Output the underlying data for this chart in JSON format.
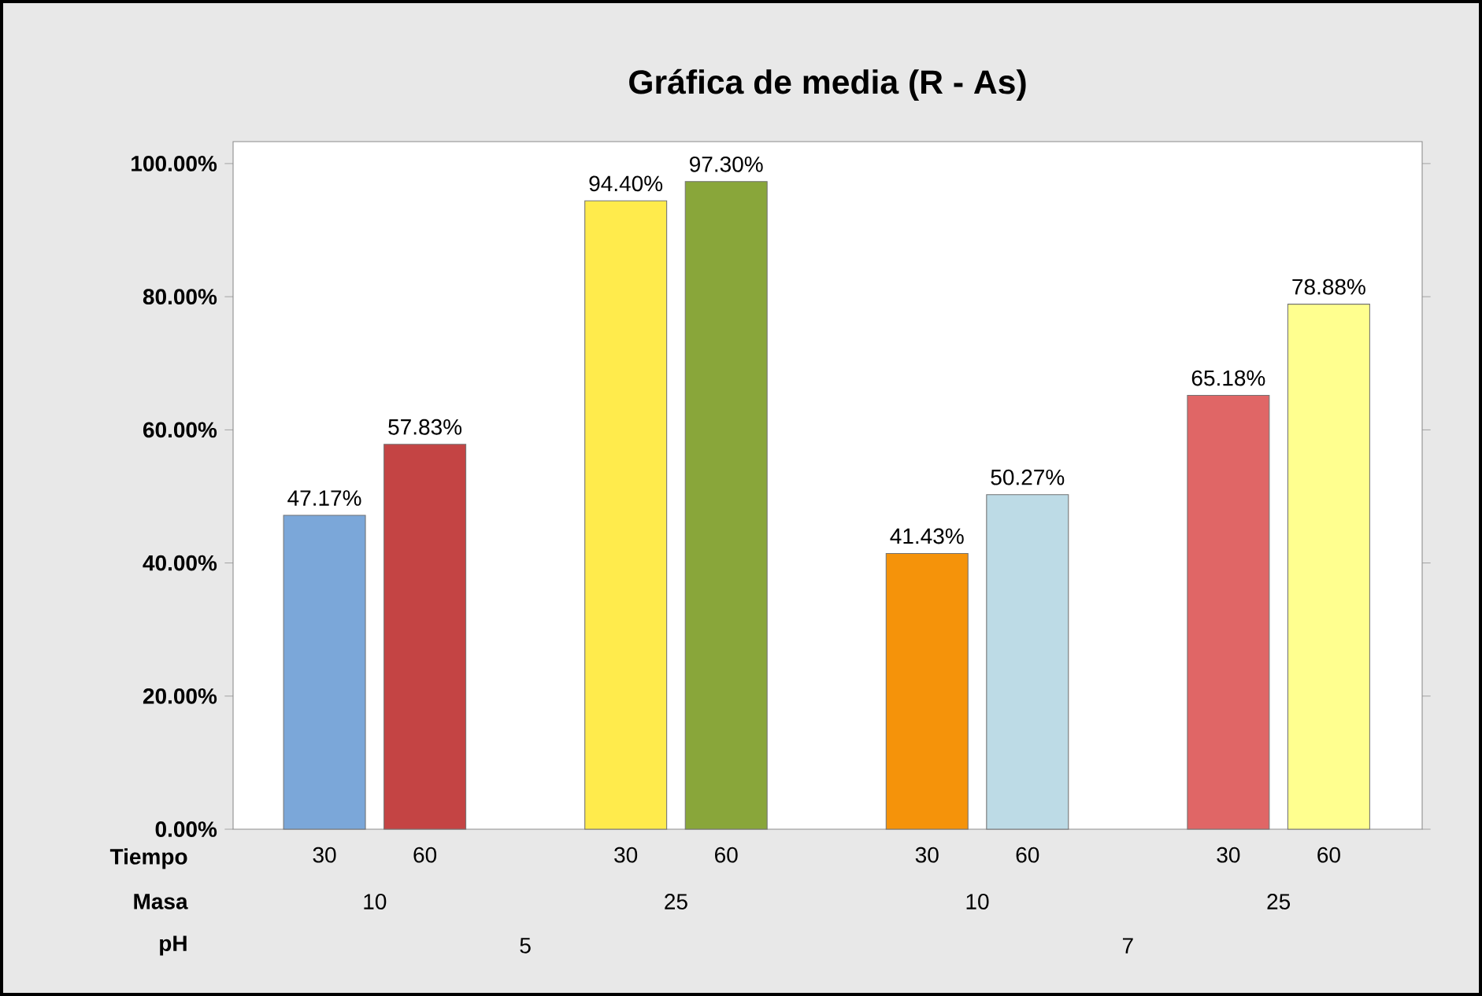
{
  "chart_data": {
    "type": "bar",
    "title": "Gráfica de media (R - As)",
    "xlabel": "Tiempo",
    "categories": [
      "30",
      "60",
      null,
      "30",
      "60",
      null,
      "30",
      "60",
      null,
      "30",
      "60"
    ],
    "values": [
      47.17,
      57.83,
      null,
      94.4,
      97.3,
      null,
      41.43,
      50.27,
      null,
      65.18,
      78.88
    ],
    "colors": [
      "#7ba7d9",
      "#c44444",
      null,
      "#ffeb4c",
      "#89a63a",
      null,
      "#f5930a",
      "#bddbe6",
      null,
      "#e06666",
      "#ffff8f"
    ],
    "value_labels": [
      "47.17%",
      "57.83%",
      null,
      "94.40%",
      "97.30%",
      null,
      "41.43%",
      "50.27%",
      null,
      "65.18%",
      "78.88%"
    ],
    "ylim": [
      0,
      103.3
    ],
    "yticks": [
      {
        "value": 0,
        "label": "0.00%"
      },
      {
        "value": 20,
        "label": "20.00%"
      },
      {
        "value": 40,
        "label": "40.00%"
      },
      {
        "value": 60,
        "label": "60.00%"
      },
      {
        "value": 80,
        "label": "80.00%"
      },
      {
        "value": 100,
        "label": "100.00%"
      }
    ],
    "annotations": [
      "Masa",
      "10",
      "25",
      "10",
      "25",
      "pH",
      "5",
      "7"
    ]
  }
}
